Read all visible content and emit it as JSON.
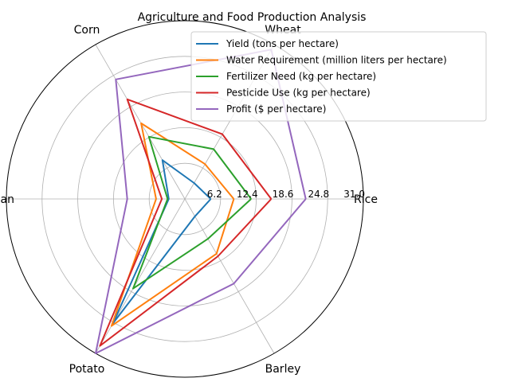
{
  "chart_data": {
    "type": "radar",
    "title": "Agriculture and Food Production Analysis",
    "categories": [
      "Rice",
      "Wheat",
      "Corn",
      "Soybean",
      "Potato",
      "Barley"
    ],
    "r_ticks": [
      "6.2",
      "12.4",
      "18.6",
      "24.8",
      "31.0"
    ],
    "r_max": 31.0,
    "grid": true,
    "legend_position": "top-right",
    "series": [
      {
        "name": "Yield (tons per hectare)",
        "color": "#1f77b4",
        "values": [
          4.5,
          3.2,
          7.8,
          2.8,
          25.0,
          3.5
        ]
      },
      {
        "name": "Water Requirement (million liters per hectare)",
        "color": "#ff7f0e",
        "values": [
          8.5,
          7.0,
          15.2,
          5.0,
          25.5,
          11.0
        ]
      },
      {
        "name": "Fertilizer Need (kg per hectare)",
        "color": "#2ca02c",
        "values": [
          11.5,
          10.0,
          12.5,
          3.0,
          18.0,
          8.0
        ]
      },
      {
        "name": "Pesticide Use (kg per hectare)",
        "color": "#d62728",
        "values": [
          15.0,
          13.0,
          20.0,
          4.0,
          29.5,
          11.5
        ]
      },
      {
        "name": "Profit ($ per hectare)",
        "color": "#9467bd",
        "values": [
          21.0,
          30.0,
          24.0,
          10.0,
          31.0,
          17.0
        ]
      }
    ]
  }
}
